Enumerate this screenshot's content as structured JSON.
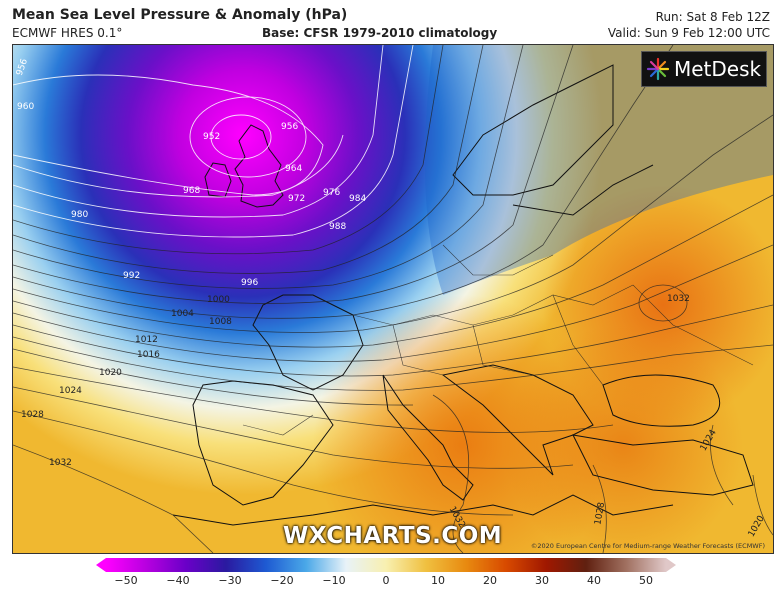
{
  "header": {
    "title": "Mean Sea Level Pressure & Anomaly (hPa)",
    "model": "ECMWF HRES 0.1°",
    "base": "Base: CFSR 1979-2010 climatology",
    "run": "Run: Sat 8 Feb 12Z",
    "valid": "Valid: Sun 9 Feb 12:00 UTC"
  },
  "logo": {
    "text": "MetDesk",
    "icon": "metdesk-starburst-icon"
  },
  "watermark": "WXCHARTS.COM",
  "copyright": "©2020 European Centre for Medium-range Weather Forecasts (ECMWF)",
  "isobar_labels": [
    "956",
    "960",
    "952",
    "956",
    "964",
    "968",
    "972",
    "976",
    "980",
    "984",
    "988",
    "992",
    "996",
    "1000",
    "1004",
    "1008",
    "1012",
    "1016",
    "1020",
    "1024",
    "1028",
    "1032",
    "1032",
    "1032",
    "1028",
    "1024",
    "1020"
  ],
  "colorbar": {
    "ticks": [
      "−50",
      "−40",
      "−30",
      "−20",
      "−10",
      "0",
      "10",
      "20",
      "30",
      "40",
      "50"
    ],
    "colors": [
      "#ff00ff",
      "#b800e0",
      "#6a00c8",
      "#2a1aa0",
      "#1e5ad2",
      "#4aa8e8",
      "#e8f2f8",
      "#f8f0b0",
      "#f0c040",
      "#e88a10",
      "#d84a00",
      "#a01800",
      "#602010",
      "#a07060",
      "#e0c8c8"
    ]
  }
}
